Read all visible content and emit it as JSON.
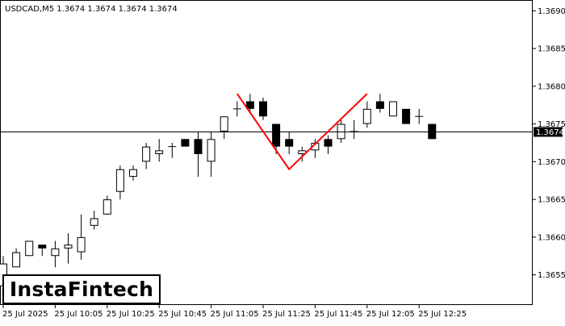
{
  "header": {
    "symbol_line": "USDCAD,M5  1.3674 1.3674 1.3674 1.3674"
  },
  "logo": {
    "text": "InstaFintech"
  },
  "current_price_label": "1.3674",
  "chart_data": {
    "type": "candlestick",
    "title": "USDCAD,M5",
    "ylim": [
      1.3651,
      1.3691
    ],
    "y_ticks": [
      "1.3655",
      "1.3660",
      "1.3665",
      "1.3670",
      "1.3675",
      "1.3680",
      "1.3685",
      "1.3690"
    ],
    "x_tick_labels": [
      "25 Jul 2025",
      "25 Jul 10:05",
      "25 Jul 10:25",
      "25 Jul 10:45",
      "25 Jul 11:05",
      "25 Jul 11:25",
      "25 Jul 11:45",
      "25 Jul 12:05",
      "25 Jul 12:25"
    ],
    "current_price": 1.3674,
    "grid": false,
    "candles": [
      {
        "o": 1.36535,
        "h": 1.36575,
        "l": 1.36515,
        "c": 1.36565
      },
      {
        "o": 1.3656,
        "h": 1.36585,
        "l": 1.3656,
        "c": 1.3658
      },
      {
        "o": 1.36575,
        "h": 1.36595,
        "l": 1.36575,
        "c": 1.36595
      },
      {
        "o": 1.3659,
        "h": 1.3659,
        "l": 1.36575,
        "c": 1.36585
      },
      {
        "o": 1.36575,
        "h": 1.36595,
        "l": 1.3656,
        "c": 1.36585
      },
      {
        "o": 1.36585,
        "h": 1.36605,
        "l": 1.36565,
        "c": 1.3659
      },
      {
        "o": 1.3658,
        "h": 1.3663,
        "l": 1.3657,
        "c": 1.366
      },
      {
        "o": 1.36615,
        "h": 1.36635,
        "l": 1.3661,
        "c": 1.36625
      },
      {
        "o": 1.3663,
        "h": 1.36655,
        "l": 1.3663,
        "c": 1.3665
      },
      {
        "o": 1.3666,
        "h": 1.36695,
        "l": 1.3665,
        "c": 1.3669
      },
      {
        "o": 1.3668,
        "h": 1.36695,
        "l": 1.36675,
        "c": 1.3669
      },
      {
        "o": 1.367,
        "h": 1.36725,
        "l": 1.3669,
        "c": 1.3672
      },
      {
        "o": 1.3671,
        "h": 1.3673,
        "l": 1.367,
        "c": 1.36715
      },
      {
        "o": 1.3672,
        "h": 1.36725,
        "l": 1.36705,
        "c": 1.3672
      },
      {
        "o": 1.3673,
        "h": 1.3673,
        "l": 1.3672,
        "c": 1.3672
      },
      {
        "o": 1.3673,
        "h": 1.3674,
        "l": 1.3668,
        "c": 1.3671
      },
      {
        "o": 1.367,
        "h": 1.3674,
        "l": 1.3668,
        "c": 1.3673
      },
      {
        "o": 1.3674,
        "h": 1.3676,
        "l": 1.3673,
        "c": 1.3676
      },
      {
        "o": 1.3677,
        "h": 1.3678,
        "l": 1.3676,
        "c": 1.3677
      },
      {
        "o": 1.3678,
        "h": 1.3679,
        "l": 1.36765,
        "c": 1.3677
      },
      {
        "o": 1.3678,
        "h": 1.36785,
        "l": 1.36755,
        "c": 1.3676
      },
      {
        "o": 1.3675,
        "h": 1.3675,
        "l": 1.3671,
        "c": 1.3672
      },
      {
        "o": 1.3673,
        "h": 1.3674,
        "l": 1.3671,
        "c": 1.3672
      },
      {
        "o": 1.3671,
        "h": 1.3672,
        "l": 1.367,
        "c": 1.36715
      },
      {
        "o": 1.36715,
        "h": 1.3673,
        "l": 1.36705,
        "c": 1.36725
      },
      {
        "o": 1.3673,
        "h": 1.36735,
        "l": 1.3671,
        "c": 1.3672
      },
      {
        "o": 1.3673,
        "h": 1.36755,
        "l": 1.36725,
        "c": 1.3675
      },
      {
        "o": 1.3674,
        "h": 1.36755,
        "l": 1.3673,
        "c": 1.3674
      },
      {
        "o": 1.3675,
        "h": 1.3678,
        "l": 1.36745,
        "c": 1.3677
      },
      {
        "o": 1.3678,
        "h": 1.3679,
        "l": 1.36765,
        "c": 1.3677
      },
      {
        "o": 1.3676,
        "h": 1.3678,
        "l": 1.3676,
        "c": 1.3678
      },
      {
        "o": 1.3677,
        "h": 1.3677,
        "l": 1.3675,
        "c": 1.3675
      },
      {
        "o": 1.3676,
        "h": 1.3677,
        "l": 1.3675,
        "c": 1.3676
      },
      {
        "o": 1.3675,
        "h": 1.3675,
        "l": 1.3673,
        "c": 1.3673
      }
    ],
    "pattern_line": [
      {
        "i": 18,
        "y": 1.3679
      },
      {
        "i": 22,
        "y": 1.3669
      },
      {
        "i": 28,
        "y": 1.3679
      }
    ],
    "colors": {
      "background": "#ffffff",
      "candle": "#000000",
      "pattern": "#ff0000",
      "price_label_bg": "#000000",
      "price_label_text": "#ffffff"
    }
  }
}
